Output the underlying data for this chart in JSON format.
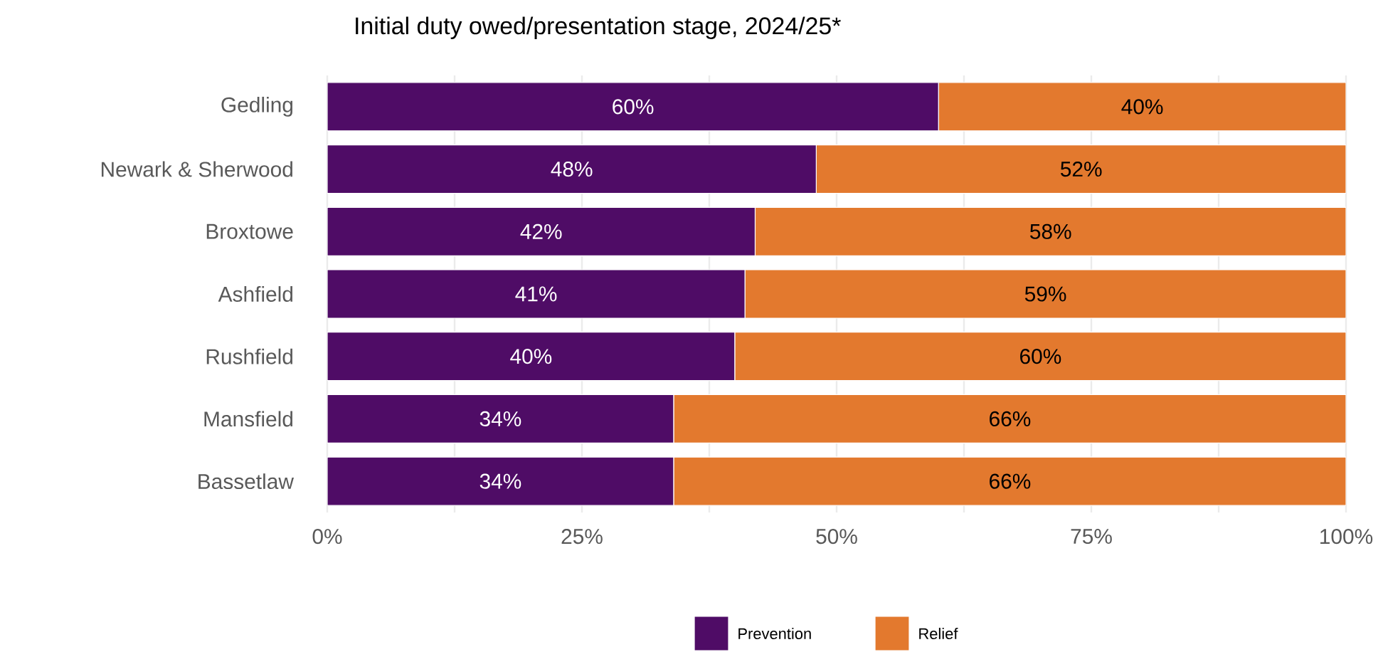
{
  "chart_data": {
    "type": "bar",
    "orientation": "horizontal",
    "stacked": true,
    "title": "Initial duty owed/presentation stage, 2024/25*",
    "categories": [
      "Gedling",
      "Newark & Sherwood",
      "Broxtowe",
      "Ashfield",
      "Rushfield",
      "Mansfield",
      "Bassetlaw"
    ],
    "series": [
      {
        "name": "Prevention",
        "color": "#4f0c66",
        "values": [
          60,
          48,
          42,
          41,
          40,
          34,
          34
        ],
        "value_labels": [
          "60%",
          "48%",
          "42%",
          "41%",
          "40%",
          "34%",
          "34%"
        ]
      },
      {
        "name": "Relief",
        "color": "#e3792e",
        "values": [
          40,
          52,
          58,
          59,
          60,
          66,
          66
        ],
        "value_labels": [
          "40%",
          "52%",
          "58%",
          "59%",
          "60%",
          "66%",
          "66%"
        ]
      }
    ],
    "xlim": [
      0,
      100
    ],
    "xticks": [
      {
        "value": 0,
        "label": "0%"
      },
      {
        "value": 25,
        "label": "25%"
      },
      {
        "value": 50,
        "label": "50%"
      },
      {
        "value": 75,
        "label": "75%"
      },
      {
        "value": 100,
        "label": "100%"
      }
    ],
    "grid": "x",
    "legend": "bottom"
  }
}
